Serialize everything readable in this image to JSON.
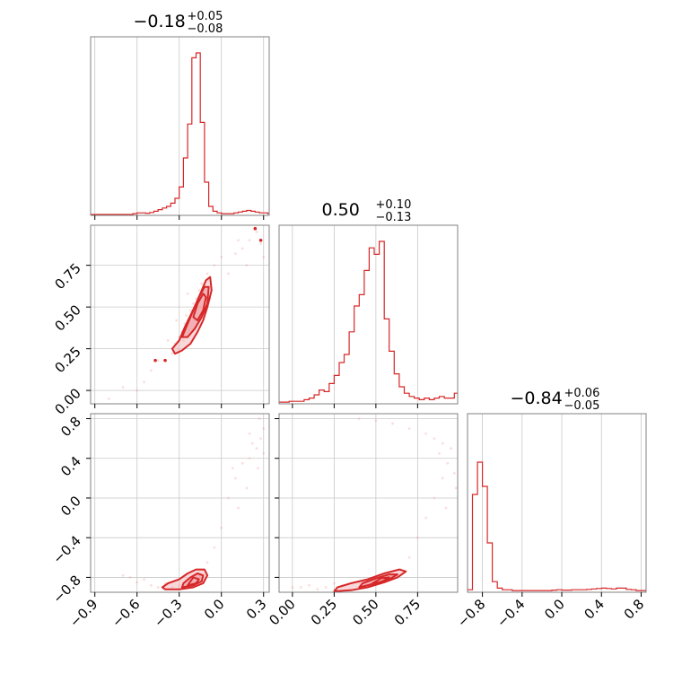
{
  "chart_data": {
    "type": "corner",
    "series_color": "#d62728",
    "parameters": [
      {
        "summary": {
          "median": "−0.18",
          "plus": "+0.05",
          "minus": "−0.08"
        },
        "range": [
          -0.93,
          0.34
        ],
        "ticks": [
          -0.9,
          -0.6,
          -0.3,
          0.0,
          0.3
        ],
        "tick_labels": [
          "−0.9",
          "−0.6",
          "−0.3",
          "0.0",
          "0.3"
        ],
        "hist_x": [
          -0.93,
          -0.9,
          -0.87,
          -0.84,
          -0.81,
          -0.78,
          -0.75,
          -0.72,
          -0.69,
          -0.66,
          -0.63,
          -0.6,
          -0.57,
          -0.54,
          -0.51,
          -0.48,
          -0.45,
          -0.42,
          -0.39,
          -0.36,
          -0.33,
          -0.3,
          -0.27,
          -0.24,
          -0.21,
          -0.18,
          -0.15,
          -0.12,
          -0.09,
          -0.06,
          -0.03,
          0.0,
          0.03,
          0.06,
          0.09,
          0.12,
          0.15,
          0.18,
          0.21,
          0.24,
          0.27,
          0.3,
          0.33
        ],
        "hist_h": [
          0,
          0,
          0,
          0,
          0,
          0,
          0,
          0,
          0,
          0,
          0.005,
          0.01,
          0.01,
          0.008,
          0.012,
          0.02,
          0.03,
          0.04,
          0.05,
          0.07,
          0.1,
          0.17,
          0.35,
          0.56,
          0.97,
          1.0,
          0.57,
          0.2,
          0.05,
          0.02,
          0.01,
          0.005,
          0.005,
          0.005,
          0.01,
          0.015,
          0.02,
          0.025,
          0.02,
          0.015,
          0.01,
          0.01,
          0.005
        ]
      },
      {
        "summary": {
          "median": "0.50",
          "plus": "+0.10",
          "minus": "−0.13"
        },
        "range": [
          -0.08,
          0.99
        ],
        "ticks": [
          0.0,
          0.25,
          0.5,
          0.75
        ],
        "tick_labels": [
          "0.00",
          "0.25",
          "0.50",
          "0.75"
        ],
        "hist_x": [
          -0.08,
          -0.05,
          -0.02,
          0.01,
          0.04,
          0.07,
          0.1,
          0.13,
          0.16,
          0.19,
          0.22,
          0.25,
          0.28,
          0.31,
          0.34,
          0.37,
          0.4,
          0.43,
          0.46,
          0.49,
          0.52,
          0.55,
          0.58,
          0.61,
          0.64,
          0.67,
          0.7,
          0.73,
          0.76,
          0.79,
          0.82,
          0.85,
          0.88,
          0.91,
          0.94,
          0.97
        ],
        "hist_h": [
          0.005,
          0.005,
          0.01,
          0.01,
          0.01,
          0.02,
          0.03,
          0.05,
          0.08,
          0.07,
          0.12,
          0.17,
          0.25,
          0.3,
          0.44,
          0.6,
          0.67,
          0.82,
          0.96,
          0.92,
          1.0,
          0.52,
          0.32,
          0.18,
          0.1,
          0.06,
          0.04,
          0.03,
          0.02,
          0.03,
          0.02,
          0.03,
          0.04,
          0.03,
          0.03,
          0.06
        ]
      },
      {
        "summary": {
          "median": "−0.84",
          "plus": "+0.06",
          "minus": "−0.05"
        },
        "range": [
          -0.95,
          0.85
        ],
        "ticks": [
          -0.8,
          -0.4,
          0.0,
          0.4,
          0.8
        ],
        "tick_labels": [
          "−0.8",
          "−0.4",
          "0.0",
          "0.4",
          "0.8"
        ],
        "hist_x": [
          -0.95,
          -0.9,
          -0.85,
          -0.8,
          -0.75,
          -0.7,
          -0.65,
          -0.6,
          -0.55,
          -0.5,
          -0.45,
          -0.4,
          -0.35,
          -0.3,
          -0.25,
          -0.2,
          -0.15,
          -0.1,
          -0.05,
          0.0,
          0.05,
          0.1,
          0.15,
          0.2,
          0.25,
          0.3,
          0.35,
          0.4,
          0.45,
          0.5,
          0.55,
          0.6,
          0.65,
          0.7,
          0.75,
          0.8
        ],
        "hist_h": [
          0.01,
          0.6,
          0.8,
          0.65,
          0.3,
          0.06,
          0.02,
          0.01,
          0.01,
          0.005,
          0.005,
          0.005,
          0.005,
          0.005,
          0.005,
          0.005,
          0.005,
          0.008,
          0.01,
          0.008,
          0.008,
          0.01,
          0.01,
          0.01,
          0.012,
          0.015,
          0.018,
          0.02,
          0.018,
          0.015,
          0.02,
          0.02,
          0.012,
          0.01,
          0.005,
          0.005
        ]
      }
    ],
    "pairs": [
      {
        "x_param": 0,
        "y_param": 1,
        "points": [
          [
            -0.45,
            0.18
          ],
          [
            -0.4,
            0.18
          ],
          [
            -0.5,
            0.12
          ],
          [
            -0.55,
            0.05
          ],
          [
            -0.6,
            0.0
          ],
          [
            -0.35,
            0.22
          ],
          [
            -0.33,
            0.28
          ],
          [
            -0.3,
            0.32
          ],
          [
            -0.28,
            0.35
          ],
          [
            -0.26,
            0.4
          ],
          [
            -0.25,
            0.45
          ],
          [
            -0.22,
            0.48
          ],
          [
            -0.2,
            0.52
          ],
          [
            -0.18,
            0.55
          ],
          [
            -0.16,
            0.6
          ],
          [
            -0.14,
            0.64
          ],
          [
            -0.12,
            0.62
          ],
          [
            -0.15,
            0.5
          ],
          [
            -0.19,
            0.42
          ],
          [
            -0.23,
            0.36
          ],
          [
            -0.27,
            0.3
          ],
          [
            -0.31,
            0.25
          ],
          [
            -0.1,
            0.7
          ],
          [
            -0.05,
            0.75
          ],
          [
            0.0,
            0.8
          ],
          [
            0.05,
            0.7
          ],
          [
            0.1,
            0.82
          ],
          [
            0.15,
            0.85
          ],
          [
            0.2,
            0.9
          ],
          [
            0.25,
            0.95
          ],
          [
            0.28,
            0.88
          ],
          [
            0.3,
            0.8
          ],
          [
            -0.7,
            0.02
          ],
          [
            -0.8,
            -0.05
          ],
          [
            -0.38,
            0.3
          ],
          [
            -0.24,
            0.58
          ],
          [
            -0.32,
            0.42
          ],
          [
            0.18,
            0.75
          ],
          [
            0.12,
            0.9
          ],
          [
            -0.08,
            0.55
          ]
        ],
        "levels": [
          [
            [
              -0.35,
              0.25
            ],
            [
              -0.3,
              0.3
            ],
            [
              -0.26,
              0.38
            ],
            [
              -0.22,
              0.45
            ],
            [
              -0.18,
              0.52
            ],
            [
              -0.14,
              0.6
            ],
            [
              -0.11,
              0.66
            ],
            [
              -0.08,
              0.68
            ],
            [
              -0.07,
              0.6
            ],
            [
              -0.1,
              0.5
            ],
            [
              -0.13,
              0.42
            ],
            [
              -0.17,
              0.35
            ],
            [
              -0.22,
              0.28
            ],
            [
              -0.28,
              0.24
            ],
            [
              -0.33,
              0.22
            ]
          ],
          [
            [
              -0.28,
              0.32
            ],
            [
              -0.24,
              0.4
            ],
            [
              -0.2,
              0.48
            ],
            [
              -0.16,
              0.56
            ],
            [
              -0.12,
              0.62
            ],
            [
              -0.09,
              0.62
            ],
            [
              -0.1,
              0.52
            ],
            [
              -0.14,
              0.44
            ],
            [
              -0.19,
              0.37
            ],
            [
              -0.24,
              0.32
            ]
          ],
          [
            [
              -0.2,
              0.44
            ],
            [
              -0.17,
              0.52
            ],
            [
              -0.13,
              0.58
            ],
            [
              -0.11,
              0.56
            ],
            [
              -0.13,
              0.48
            ],
            [
              -0.17,
              0.42
            ]
          ]
        ],
        "specks": [
          [
            -0.47,
            0.18
          ],
          [
            -0.4,
            0.18
          ],
          [
            0.24,
            0.97
          ],
          [
            0.28,
            0.9
          ]
        ]
      },
      {
        "x_param": 0,
        "y_param": 2,
        "points": [
          [
            -0.6,
            -0.85
          ],
          [
            -0.5,
            -0.88
          ],
          [
            -0.45,
            -0.9
          ],
          [
            -0.4,
            -0.86
          ],
          [
            -0.35,
            -0.9
          ],
          [
            -0.3,
            -0.88
          ],
          [
            -0.2,
            -0.8
          ],
          [
            -0.15,
            -0.78
          ],
          [
            -0.25,
            -0.83
          ],
          [
            -0.55,
            -0.82
          ],
          [
            -0.65,
            -0.8
          ],
          [
            -0.7,
            -0.78
          ],
          [
            -0.05,
            -0.5
          ],
          [
            0.0,
            -0.3
          ],
          [
            0.05,
            0.0
          ],
          [
            0.1,
            0.2
          ],
          [
            0.15,
            0.35
          ],
          [
            0.2,
            0.4
          ],
          [
            0.25,
            0.5
          ],
          [
            0.28,
            0.6
          ],
          [
            0.3,
            0.7
          ],
          [
            0.26,
            0.3
          ],
          [
            0.22,
            0.55
          ],
          [
            0.18,
            0.1
          ],
          [
            0.3,
            0.45
          ],
          [
            0.12,
            -0.1
          ],
          [
            0.08,
            0.3
          ],
          [
            0.27,
            0.8
          ],
          [
            0.2,
            0.65
          ],
          [
            -0.1,
            -0.65
          ]
        ],
        "levels": [
          [
            [
              -0.4,
              -0.92
            ],
            [
              -0.3,
              -0.92
            ],
            [
              -0.2,
              -0.9
            ],
            [
              -0.13,
              -0.86
            ],
            [
              -0.1,
              -0.78
            ],
            [
              -0.12,
              -0.72
            ],
            [
              -0.18,
              -0.72
            ],
            [
              -0.24,
              -0.76
            ],
            [
              -0.3,
              -0.82
            ],
            [
              -0.38,
              -0.86
            ],
            [
              -0.42,
              -0.9
            ]
          ],
          [
            [
              -0.28,
              -0.9
            ],
            [
              -0.2,
              -0.88
            ],
            [
              -0.14,
              -0.84
            ],
            [
              -0.13,
              -0.78
            ],
            [
              -0.17,
              -0.76
            ],
            [
              -0.22,
              -0.8
            ],
            [
              -0.27,
              -0.86
            ]
          ],
          [
            [
              -0.24,
              -0.88
            ],
            [
              -0.18,
              -0.86
            ],
            [
              -0.16,
              -0.82
            ],
            [
              -0.2,
              -0.8
            ]
          ]
        ],
        "specks": []
      },
      {
        "x_param": 1,
        "y_param": 2,
        "points": [
          [
            0.2,
            -0.9
          ],
          [
            0.15,
            -0.92
          ],
          [
            0.1,
            -0.88
          ],
          [
            0.05,
            -0.9
          ],
          [
            0.0,
            -0.9
          ],
          [
            0.3,
            -0.88
          ],
          [
            0.4,
            -0.85
          ],
          [
            0.5,
            -0.82
          ],
          [
            0.6,
            -0.78
          ],
          [
            0.65,
            -0.72
          ],
          [
            0.7,
            -0.6
          ],
          [
            0.75,
            -0.4
          ],
          [
            0.8,
            -0.2
          ],
          [
            0.85,
            0.0
          ],
          [
            0.9,
            0.2
          ],
          [
            0.93,
            0.35
          ],
          [
            0.95,
            0.5
          ],
          [
            0.9,
            0.55
          ],
          [
            0.85,
            0.6
          ],
          [
            0.8,
            0.65
          ],
          [
            0.7,
            0.7
          ],
          [
            0.6,
            0.75
          ],
          [
            0.5,
            0.78
          ],
          [
            0.4,
            0.8
          ],
          [
            0.97,
            0.25
          ],
          [
            0.98,
            0.1
          ],
          [
            0.92,
            -0.1
          ],
          [
            0.88,
            0.45
          ],
          [
            0.25,
            -0.86
          ],
          [
            0.35,
            -0.92
          ]
        ],
        "levels": [
          [
            [
              0.25,
              -0.94
            ],
            [
              0.35,
              -0.93
            ],
            [
              0.45,
              -0.9
            ],
            [
              0.55,
              -0.85
            ],
            [
              0.63,
              -0.8
            ],
            [
              0.68,
              -0.74
            ],
            [
              0.64,
              -0.72
            ],
            [
              0.55,
              -0.76
            ],
            [
              0.45,
              -0.82
            ],
            [
              0.35,
              -0.86
            ],
            [
              0.27,
              -0.9
            ]
          ],
          [
            [
              0.4,
              -0.9
            ],
            [
              0.5,
              -0.86
            ],
            [
              0.58,
              -0.82
            ],
            [
              0.63,
              -0.77
            ],
            [
              0.58,
              -0.77
            ],
            [
              0.5,
              -0.81
            ],
            [
              0.42,
              -0.86
            ]
          ],
          [
            [
              0.47,
              -0.87
            ],
            [
              0.54,
              -0.84
            ],
            [
              0.58,
              -0.8
            ],
            [
              0.53,
              -0.81
            ]
          ]
        ],
        "specks": []
      }
    ]
  }
}
